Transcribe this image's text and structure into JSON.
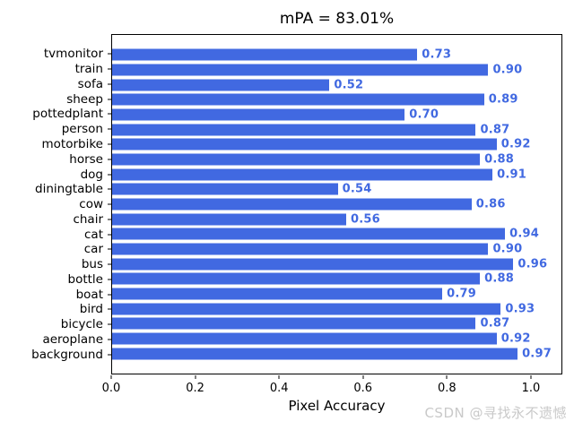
{
  "figure": {
    "watermark": "CSDN @寻找永不遗憾"
  },
  "chart_data": {
    "type": "bar",
    "orientation": "horizontal",
    "title": "mPA = 83.01%",
    "xlabel": "Pixel Accuracy",
    "ylabel": "",
    "categories": [
      "tvmonitor",
      "train",
      "sofa",
      "sheep",
      "pottedplant",
      "person",
      "motorbike",
      "horse",
      "dog",
      "diningtable",
      "cow",
      "chair",
      "cat",
      "car",
      "bus",
      "bottle",
      "boat",
      "bird",
      "bicycle",
      "aeroplane",
      "background"
    ],
    "values": [
      0.73,
      0.9,
      0.52,
      0.89,
      0.7,
      0.87,
      0.92,
      0.88,
      0.91,
      0.54,
      0.86,
      0.56,
      0.94,
      0.9,
      0.96,
      0.88,
      0.79,
      0.93,
      0.87,
      0.92,
      0.97
    ],
    "value_labels": [
      "0.73",
      "0.90",
      "0.52",
      "0.89",
      "0.70",
      "0.87",
      "0.92",
      "0.88",
      "0.91",
      "0.54",
      "0.86",
      "0.56",
      "0.94",
      "0.90",
      "0.96",
      "0.88",
      "0.79",
      "0.93",
      "0.87",
      "0.92",
      "0.97"
    ],
    "x_ticks": [
      "0.0",
      "0.2",
      "0.4",
      "0.6",
      "0.8",
      "1.0"
    ],
    "x_tick_values": [
      0.0,
      0.2,
      0.4,
      0.6,
      0.8,
      1.0
    ],
    "xlim": [
      0,
      1.075
    ],
    "grid": false,
    "legend": null,
    "bar_color": "#4169e1",
    "value_label_color": "#4169e1",
    "spine_color": "#000000",
    "watermark_color": "#c9c9c9"
  }
}
